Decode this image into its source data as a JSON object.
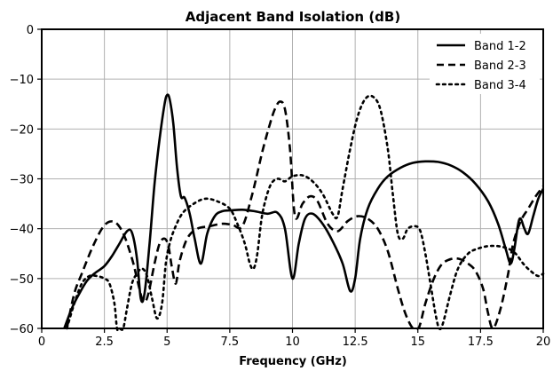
{
  "chart_data": {
    "type": "line",
    "title": "Adjacent Band Isolation (dB)",
    "xlabel": "Frequency (GHz)",
    "ylabel": "",
    "xlim": [
      0,
      20
    ],
    "ylim": [
      -60,
      0
    ],
    "xticks": [
      0,
      2.5,
      5,
      7.5,
      10,
      12.5,
      15,
      17.5,
      20
    ],
    "xtick_labels": [
      "0",
      "2.5",
      "5",
      "7.5",
      "10",
      "12.5",
      "15",
      "17.5",
      "20"
    ],
    "yticks": [
      0,
      -10,
      -20,
      -30,
      -40,
      -50,
      -60
    ],
    "ytick_labels": [
      "0",
      "−10",
      "−20",
      "−30",
      "−40",
      "−50",
      "−60"
    ],
    "grid": true,
    "legend_position": "top-right",
    "series": [
      {
        "name": "Band 1-2",
        "style": "solid",
        "color": "#000000",
        "x": [
          0.9,
          1.2,
          1.5,
          1.8,
          2.1,
          2.5,
          2.8,
          3.1,
          3.4,
          3.6,
          3.8,
          3.95,
          4.1,
          4.3,
          4.5,
          4.7,
          4.9,
          5.0,
          5.1,
          5.25,
          5.4,
          5.55,
          5.7,
          5.9,
          6.1,
          6.35,
          6.6,
          6.9,
          7.2,
          7.6,
          8.0,
          8.5,
          9.0,
          9.4,
          9.7,
          10.0,
          10.25,
          10.5,
          10.8,
          11.2,
          11.6,
          12.0,
          12.3,
          12.5,
          12.7,
          13.0,
          13.4,
          13.8,
          14.3,
          14.8,
          15.3,
          15.8,
          16.3,
          16.8,
          17.3,
          17.8,
          18.2,
          18.5,
          18.7,
          18.85,
          19.0,
          19.1,
          19.25,
          19.4,
          19.6,
          19.8,
          20.0
        ],
        "y": [
          -60,
          -56,
          -53,
          -50.5,
          -49,
          -47.5,
          -45.5,
          -43,
          -40.5,
          -40.8,
          -46,
          -54,
          -53,
          -43,
          -31,
          -22,
          -15,
          -13.2,
          -14,
          -19,
          -28,
          -33.5,
          -33.8,
          -37,
          -42,
          -47,
          -41,
          -37.5,
          -36.5,
          -36.3,
          -36.2,
          -36.5,
          -37,
          -36.8,
          -40,
          -50,
          -43,
          -38,
          -37,
          -39,
          -42.5,
          -47,
          -52.5,
          -50,
          -42,
          -36,
          -32,
          -29.5,
          -27.8,
          -26.8,
          -26.5,
          -26.6,
          -27.3,
          -28.7,
          -31,
          -34.5,
          -39,
          -44,
          -47,
          -44,
          -39,
          -38,
          -40,
          -41,
          -37.5,
          -34,
          -32
        ]
      },
      {
        "name": "Band 2-3",
        "style": "dashed",
        "color": "#000000",
        "x": [
          1.0,
          1.3,
          1.6,
          2.0,
          2.4,
          2.7,
          3.0,
          3.3,
          3.6,
          3.8,
          4.0,
          4.15,
          4.3,
          4.5,
          4.7,
          4.9,
          5.05,
          5.2,
          5.35,
          5.5,
          5.8,
          6.2,
          6.7,
          7.2,
          7.6,
          8.0,
          8.4,
          8.8,
          9.1,
          9.3,
          9.5,
          9.7,
          9.9,
          10.1,
          10.4,
          10.7,
          11.0,
          11.4,
          11.8,
          12.2,
          12.6,
          13.0,
          13.4,
          13.8,
          14.2,
          14.5,
          14.8,
          15.0,
          15.1,
          15.3,
          15.6,
          15.9,
          16.2,
          16.6,
          17.0,
          17.3,
          17.6,
          17.8,
          18.0,
          18.3,
          18.6,
          18.8,
          19.1,
          19.4,
          19.7,
          20.0
        ],
        "y": [
          -60,
          -53,
          -49,
          -44,
          -40,
          -38.6,
          -39,
          -41.5,
          -46,
          -50,
          -54,
          -54.5,
          -52,
          -47,
          -43,
          -42,
          -43.5,
          -48,
          -51,
          -46.5,
          -42,
          -40,
          -39.5,
          -39,
          -39.2,
          -39.5,
          -33,
          -24.5,
          -19,
          -16,
          -14.5,
          -16,
          -24,
          -37.5,
          -35,
          -33.5,
          -34.5,
          -39,
          -40.5,
          -38.5,
          -37.5,
          -38,
          -40,
          -44.5,
          -52,
          -57,
          -60,
          -60,
          -59,
          -55,
          -50.5,
          -47.5,
          -46.3,
          -46,
          -47,
          -48.5,
          -52,
          -57,
          -60,
          -56,
          -49,
          -43,
          -38.5,
          -36,
          -33.5,
          -31.5
        ]
      },
      {
        "name": "Band 3-4",
        "style": "dotted",
        "color": "#000000",
        "x": [
          1.0,
          1.3,
          1.6,
          1.9,
          2.2,
          2.5,
          2.7,
          2.9,
          3.0,
          3.1,
          3.25,
          3.4,
          3.6,
          3.8,
          4.0,
          4.2,
          4.4,
          4.6,
          4.8,
          4.95,
          5.1,
          5.3,
          5.6,
          6.0,
          6.5,
          7.0,
          7.5,
          7.8,
          8.1,
          8.3,
          8.45,
          8.6,
          8.8,
          9.1,
          9.4,
          9.7,
          10.0,
          10.4,
          10.8,
          11.2,
          11.6,
          11.8,
          12.0,
          12.3,
          12.6,
          12.9,
          13.2,
          13.5,
          13.8,
          14.0,
          14.2,
          14.4,
          14.6,
          14.9,
          15.1,
          15.3,
          15.5,
          15.7,
          15.85,
          16.0,
          16.3,
          16.6,
          17.0,
          17.4,
          17.8,
          18.2,
          18.6,
          18.9,
          19.2,
          19.5,
          19.8,
          20.0
        ],
        "y": [
          -60,
          -55,
          -51,
          -49.5,
          -49.5,
          -50,
          -51,
          -55,
          -60,
          -60,
          -60,
          -56,
          -51,
          -49,
          -48,
          -49.5,
          -54,
          -58,
          -55,
          -47,
          -43,
          -40,
          -37,
          -35.2,
          -34,
          -34.5,
          -36,
          -39,
          -43,
          -47,
          -48,
          -45,
          -37,
          -31.5,
          -30,
          -30.5,
          -29.5,
          -29.3,
          -30.5,
          -33,
          -37,
          -37.5,
          -32,
          -24,
          -17.5,
          -14,
          -13.5,
          -16,
          -24,
          -33,
          -41,
          -42,
          -40,
          -39.5,
          -40.5,
          -45,
          -51,
          -57,
          -60,
          -59,
          -53,
          -48,
          -45,
          -44,
          -43.5,
          -43.5,
          -44,
          -45,
          -47,
          -48.5,
          -49.5,
          -49
        ]
      }
    ]
  }
}
